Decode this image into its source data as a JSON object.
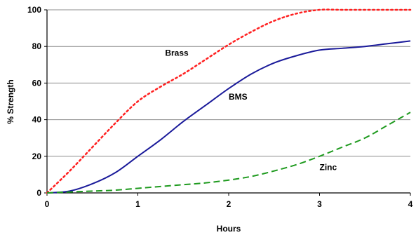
{
  "chart_data": {
    "type": "line",
    "title": "",
    "xlabel": "Hours",
    "ylabel": "% Strength",
    "xlim": [
      0,
      4
    ],
    "ylim": [
      0,
      100
    ],
    "xticks": [
      "0",
      "1",
      "2",
      "3",
      "4"
    ],
    "yticks": [
      "0",
      "20",
      "40",
      "60",
      "80",
      "100"
    ],
    "grid": "horizontal",
    "legend": "none",
    "series": [
      {
        "name": "Brass",
        "color": "#ff2020",
        "style": "dotted",
        "x": [
          0,
          0.25,
          0.5,
          0.75,
          1.0,
          1.25,
          1.5,
          1.75,
          2.0,
          2.25,
          2.5,
          2.75,
          3.0,
          3.25,
          3.5,
          3.75,
          4.0
        ],
        "y": [
          0,
          12,
          25,
          38,
          50,
          58,
          65,
          73,
          81,
          88,
          94,
          98,
          100,
          100,
          100,
          100,
          100
        ]
      },
      {
        "name": "BMS",
        "color": "#1a1a9a",
        "style": "solid",
        "x": [
          0,
          0.25,
          0.5,
          0.75,
          1.0,
          1.25,
          1.5,
          1.75,
          2.0,
          2.25,
          2.5,
          2.75,
          3.0,
          3.25,
          3.5,
          3.75,
          4.0
        ],
        "y": [
          0,
          1,
          5,
          11,
          20,
          29,
          39,
          48,
          57,
          65,
          71,
          75,
          78,
          79,
          80,
          81.5,
          83
        ]
      },
      {
        "name": "Zinc",
        "color": "#1e9a1e",
        "style": "dashed",
        "x": [
          0,
          0.25,
          0.5,
          0.75,
          1.0,
          1.25,
          1.5,
          1.75,
          2.0,
          2.25,
          2.5,
          2.75,
          3.0,
          3.25,
          3.5,
          3.75,
          4.0
        ],
        "y": [
          0,
          0.5,
          1,
          1.5,
          2.5,
          3.5,
          4.5,
          5.5,
          7,
          9,
          12,
          15.5,
          20,
          25,
          30,
          37,
          44
        ]
      }
    ],
    "annotations": [
      {
        "text": "Brass",
        "x": 1.3,
        "y": 75
      },
      {
        "text": "BMS",
        "x": 2.0,
        "y": 51
      },
      {
        "text": "Zinc",
        "x": 3.0,
        "y": 12.5
      }
    ]
  }
}
